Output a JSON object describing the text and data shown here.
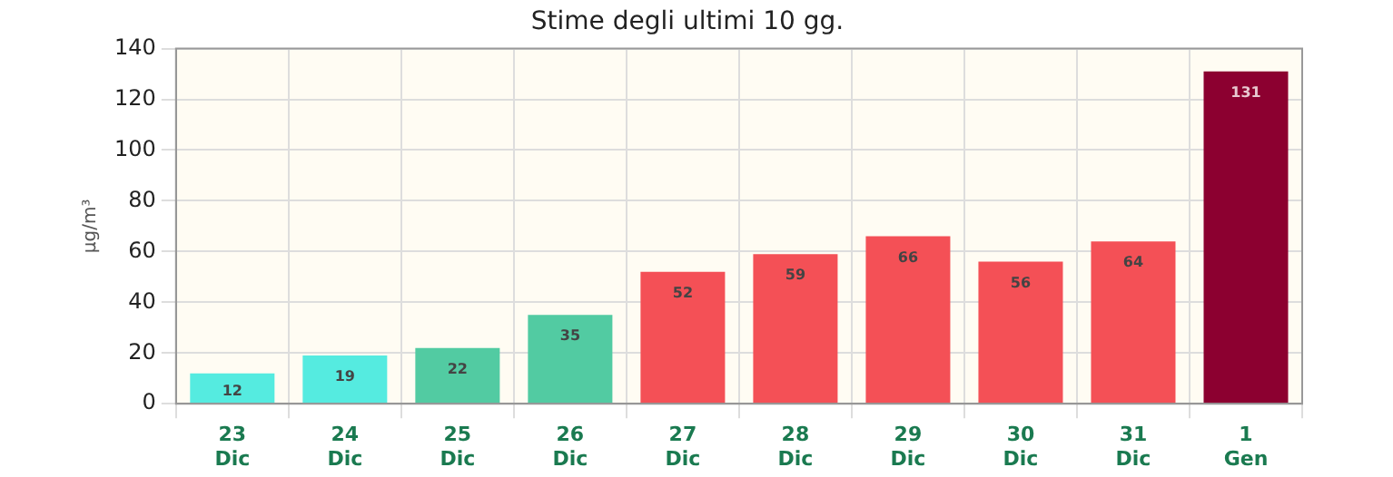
{
  "chart_data": {
    "type": "bar",
    "title": "Stime degli ultimi 10 gg.",
    "ylabel": "µg/m³",
    "categories": [
      "23 Dic",
      "24 Dic",
      "25 Dic",
      "26 Dic",
      "27 Dic",
      "28 Dic",
      "29 Dic",
      "30 Dic",
      "31 Dic",
      "1 Gen"
    ],
    "values": [
      12,
      19,
      22,
      35,
      52,
      59,
      66,
      56,
      64,
      131
    ],
    "colors": [
      "#55ebe0",
      "#55ebe0",
      "#52cba2",
      "#52cba2",
      "#f45056",
      "#f45056",
      "#f45056",
      "#f45056",
      "#f45056",
      "#8c0030"
    ],
    "ylim": [
      0,
      140
    ],
    "yticks": [
      0,
      20,
      40,
      60,
      80,
      100,
      120,
      140
    ],
    "grid": true,
    "data_labels": true,
    "legend": false
  }
}
